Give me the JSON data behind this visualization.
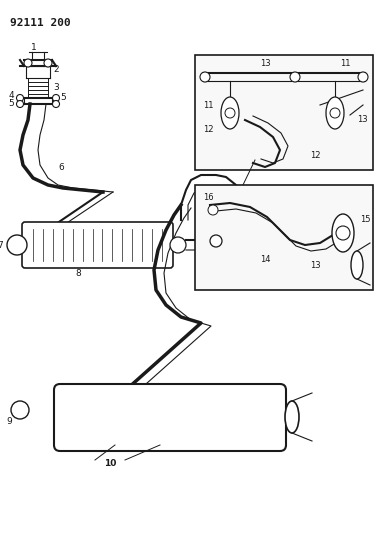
{
  "title": "92111 200",
  "bg_color": "#ffffff",
  "line_color": "#1a1a1a",
  "fig_width": 3.81,
  "fig_height": 5.33,
  "dpi": 100,
  "title_fontsize": 8,
  "title_fontweight": "bold"
}
